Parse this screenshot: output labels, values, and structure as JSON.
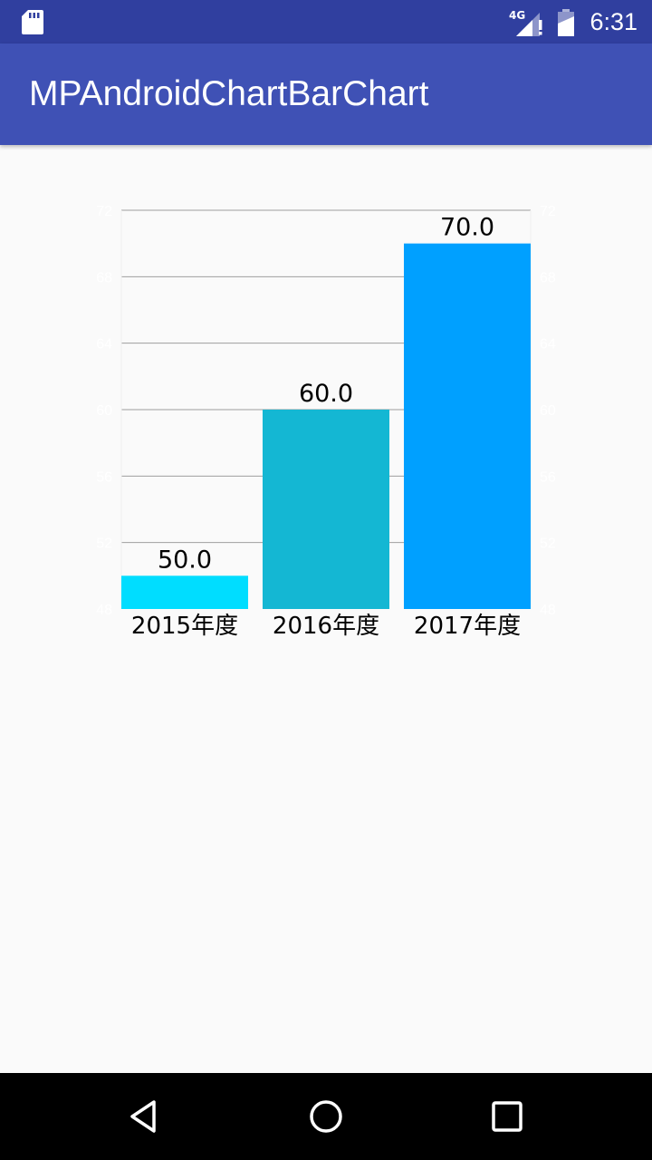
{
  "status_bar": {
    "time": "6:31",
    "network_label": "4G",
    "icons": [
      "sd-card-icon",
      "signal-4g-icon",
      "battery-icon"
    ]
  },
  "app_bar": {
    "title": "MPAndroidChartBarChart",
    "color": "#3f51b5"
  },
  "chart_data": {
    "type": "bar",
    "categories": [
      "2015年度",
      "2016年度",
      "2017年度"
    ],
    "values": [
      50.0,
      60.0,
      70.0
    ],
    "value_labels": [
      "50.0",
      "60.0",
      "70.0"
    ],
    "bar_colors": [
      "#00ddff",
      "#14b7d3",
      "#00a0ff"
    ],
    "ylim": [
      48,
      72
    ],
    "yticks": [
      48,
      52,
      56,
      60,
      64,
      68,
      72
    ],
    "y_axis_left": true,
    "y_axis_right": true,
    "grid": true,
    "legend": false,
    "title": "",
    "xlabel": "",
    "ylabel": ""
  },
  "nav_bar": {
    "icons": [
      "back-icon",
      "home-icon",
      "recent-apps-icon"
    ]
  }
}
